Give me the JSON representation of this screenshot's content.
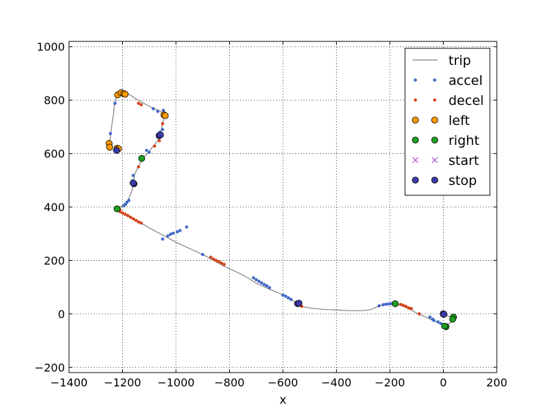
{
  "chart_data": {
    "type": "scatter",
    "title": "",
    "xlabel": "x",
    "ylabel": "",
    "xlim": [
      -1400,
      200
    ],
    "ylim": [
      -220,
      1020
    ],
    "xticks": [
      -1400,
      -1200,
      -1000,
      -800,
      -600,
      -400,
      -200,
      0,
      200
    ],
    "yticks": [
      -200,
      0,
      200,
      400,
      600,
      800,
      1000
    ],
    "grid": true,
    "legend_position": "top-right",
    "series": [
      {
        "name": "trip",
        "kind": "line",
        "color": "#808080",
        "points": [
          [
            0,
            0
          ],
          [
            10,
            -5
          ],
          [
            28,
            -12
          ],
          [
            38,
            -18
          ],
          [
            30,
            -30
          ],
          [
            15,
            -42
          ],
          [
            5,
            -48
          ],
          [
            -5,
            -38
          ],
          [
            -30,
            -28
          ],
          [
            -60,
            -15
          ],
          [
            -95,
            0
          ],
          [
            -130,
            20
          ],
          [
            -160,
            32
          ],
          [
            -180,
            37
          ],
          [
            -210,
            37
          ],
          [
            -240,
            30
          ],
          [
            -270,
            16
          ],
          [
            -300,
            12
          ],
          [
            -350,
            12
          ],
          [
            -400,
            14
          ],
          [
            -450,
            17
          ],
          [
            -500,
            22
          ],
          [
            -530,
            28
          ],
          [
            -545,
            38
          ],
          [
            -560,
            48
          ],
          [
            -590,
            65
          ],
          [
            -620,
            80
          ],
          [
            -650,
            92
          ],
          [
            -700,
            115
          ],
          [
            -740,
            140
          ],
          [
            -780,
            160
          ],
          [
            -820,
            178
          ],
          [
            -850,
            195
          ],
          [
            -900,
            222
          ],
          [
            -950,
            245
          ],
          [
            -1000,
            268
          ],
          [
            -1050,
            295
          ],
          [
            -1100,
            322
          ],
          [
            -1140,
            345
          ],
          [
            -1180,
            365
          ],
          [
            -1210,
            380
          ],
          [
            -1220,
            393
          ],
          [
            -1200,
            405
          ],
          [
            -1180,
            425
          ],
          [
            -1165,
            460
          ],
          [
            -1160,
            485
          ],
          [
            -1155,
            520
          ],
          [
            -1140,
            555
          ],
          [
            -1120,
            585
          ],
          [
            -1100,
            610
          ],
          [
            -1075,
            640
          ],
          [
            -1060,
            660
          ],
          [
            -1055,
            690
          ],
          [
            -1048,
            720
          ],
          [
            -1042,
            745
          ],
          [
            -1060,
            760
          ],
          [
            -1090,
            772
          ],
          [
            -1120,
            788
          ],
          [
            -1150,
            805
          ],
          [
            -1180,
            825
          ],
          [
            -1205,
            830
          ],
          [
            -1220,
            818
          ],
          [
            -1230,
            790
          ],
          [
            -1232,
            760
          ],
          [
            -1238,
            720
          ],
          [
            -1242,
            690
          ],
          [
            -1245,
            660
          ],
          [
            -1250,
            640
          ],
          [
            -1252,
            625
          ],
          [
            -1240,
            615
          ],
          [
            -1222,
            612
          ]
        ]
      },
      {
        "name": "accel",
        "kind": "points",
        "color": "#4169c8",
        "points": [
          [
            -1222,
            612
          ],
          [
            -1228,
            788
          ],
          [
            -1245,
            675
          ],
          [
            -1047,
            762
          ],
          [
            -1068,
            758
          ],
          [
            -1085,
            768
          ],
          [
            -1050,
            690
          ],
          [
            -1060,
            680
          ],
          [
            -1100,
            605
          ],
          [
            -1110,
            612
          ],
          [
            -1160,
            518
          ],
          [
            -1162,
            498
          ],
          [
            -1176,
            425
          ],
          [
            -1183,
            418
          ],
          [
            -1188,
            410
          ],
          [
            -1195,
            405
          ],
          [
            -1050,
            280
          ],
          [
            -1030,
            292
          ],
          [
            -1020,
            298
          ],
          [
            -1010,
            302
          ],
          [
            -995,
            307
          ],
          [
            -985,
            312
          ],
          [
            -960,
            325
          ],
          [
            -900,
            222
          ],
          [
            -710,
            135
          ],
          [
            -700,
            128
          ],
          [
            -690,
            122
          ],
          [
            -680,
            116
          ],
          [
            -670,
            110
          ],
          [
            -660,
            105
          ],
          [
            -650,
            98
          ],
          [
            -600,
            70
          ],
          [
            -590,
            66
          ],
          [
            -580,
            60
          ],
          [
            -570,
            54
          ],
          [
            -240,
            30
          ],
          [
            -225,
            34
          ],
          [
            -215,
            36
          ],
          [
            -205,
            37
          ],
          [
            -195,
            38
          ],
          [
            -175,
            38
          ],
          [
            -50,
            -12
          ],
          [
            -40,
            -20
          ],
          [
            -35,
            -25
          ],
          [
            -20,
            -30
          ],
          [
            -10,
            -36
          ],
          [
            0,
            -40
          ]
        ]
      },
      {
        "name": "decel",
        "kind": "points",
        "color": "#d4441a",
        "points": [
          [
            -1140,
            788
          ],
          [
            -1130,
            783
          ],
          [
            -1050,
            712
          ],
          [
            -1062,
            648
          ],
          [
            -1080,
            628
          ],
          [
            -1140,
            550
          ],
          [
            -1210,
            383
          ],
          [
            -1200,
            378
          ],
          [
            -1190,
            373
          ],
          [
            -1180,
            368
          ],
          [
            -1170,
            362
          ],
          [
            -1160,
            356
          ],
          [
            -1150,
            350
          ],
          [
            -1140,
            344
          ],
          [
            -1130,
            340
          ],
          [
            -1210,
            390
          ],
          [
            -870,
            212
          ],
          [
            -860,
            205
          ],
          [
            -850,
            200
          ],
          [
            -840,
            196
          ],
          [
            -830,
            190
          ],
          [
            -820,
            185
          ],
          [
            -530,
            28
          ],
          [
            -160,
            35
          ],
          [
            -150,
            32
          ],
          [
            -140,
            28
          ],
          [
            -130,
            22
          ],
          [
            -90,
            0
          ],
          [
            -120,
            20
          ]
        ]
      },
      {
        "name": "left",
        "kind": "markers",
        "color": "#ff9900",
        "points": [
          [
            -1218,
            820
          ],
          [
            -1205,
            828
          ],
          [
            -1195,
            825
          ],
          [
            -1190,
            822
          ],
          [
            -1045,
            745
          ],
          [
            -1040,
            742
          ],
          [
            -1250,
            638
          ],
          [
            -1248,
            624
          ],
          [
            -1220,
            620
          ],
          [
            -1215,
            618
          ]
        ]
      },
      {
        "name": "right",
        "kind": "markers",
        "color": "#1e9e1e",
        "points": [
          [
            -1220,
            393
          ],
          [
            -1128,
            582
          ],
          [
            -180,
            38
          ],
          [
            38,
            -12
          ],
          [
            35,
            -20
          ],
          [
            10,
            -48
          ],
          [
            5,
            -46
          ]
        ]
      },
      {
        "name": "start",
        "kind": "x",
        "color": "#9b30c8",
        "points": [
          [
            0,
            0
          ]
        ]
      },
      {
        "name": "stop",
        "kind": "markers",
        "color": "#3a3aa8",
        "points": [
          [
            -1222,
            612
          ],
          [
            -1157,
            487
          ],
          [
            -1160,
            490
          ],
          [
            -1063,
            667
          ],
          [
            -1058,
            670
          ],
          [
            -545,
            38
          ],
          [
            -540,
            40
          ],
          [
            0,
            0
          ],
          [
            2,
            -2
          ]
        ]
      }
    ]
  }
}
